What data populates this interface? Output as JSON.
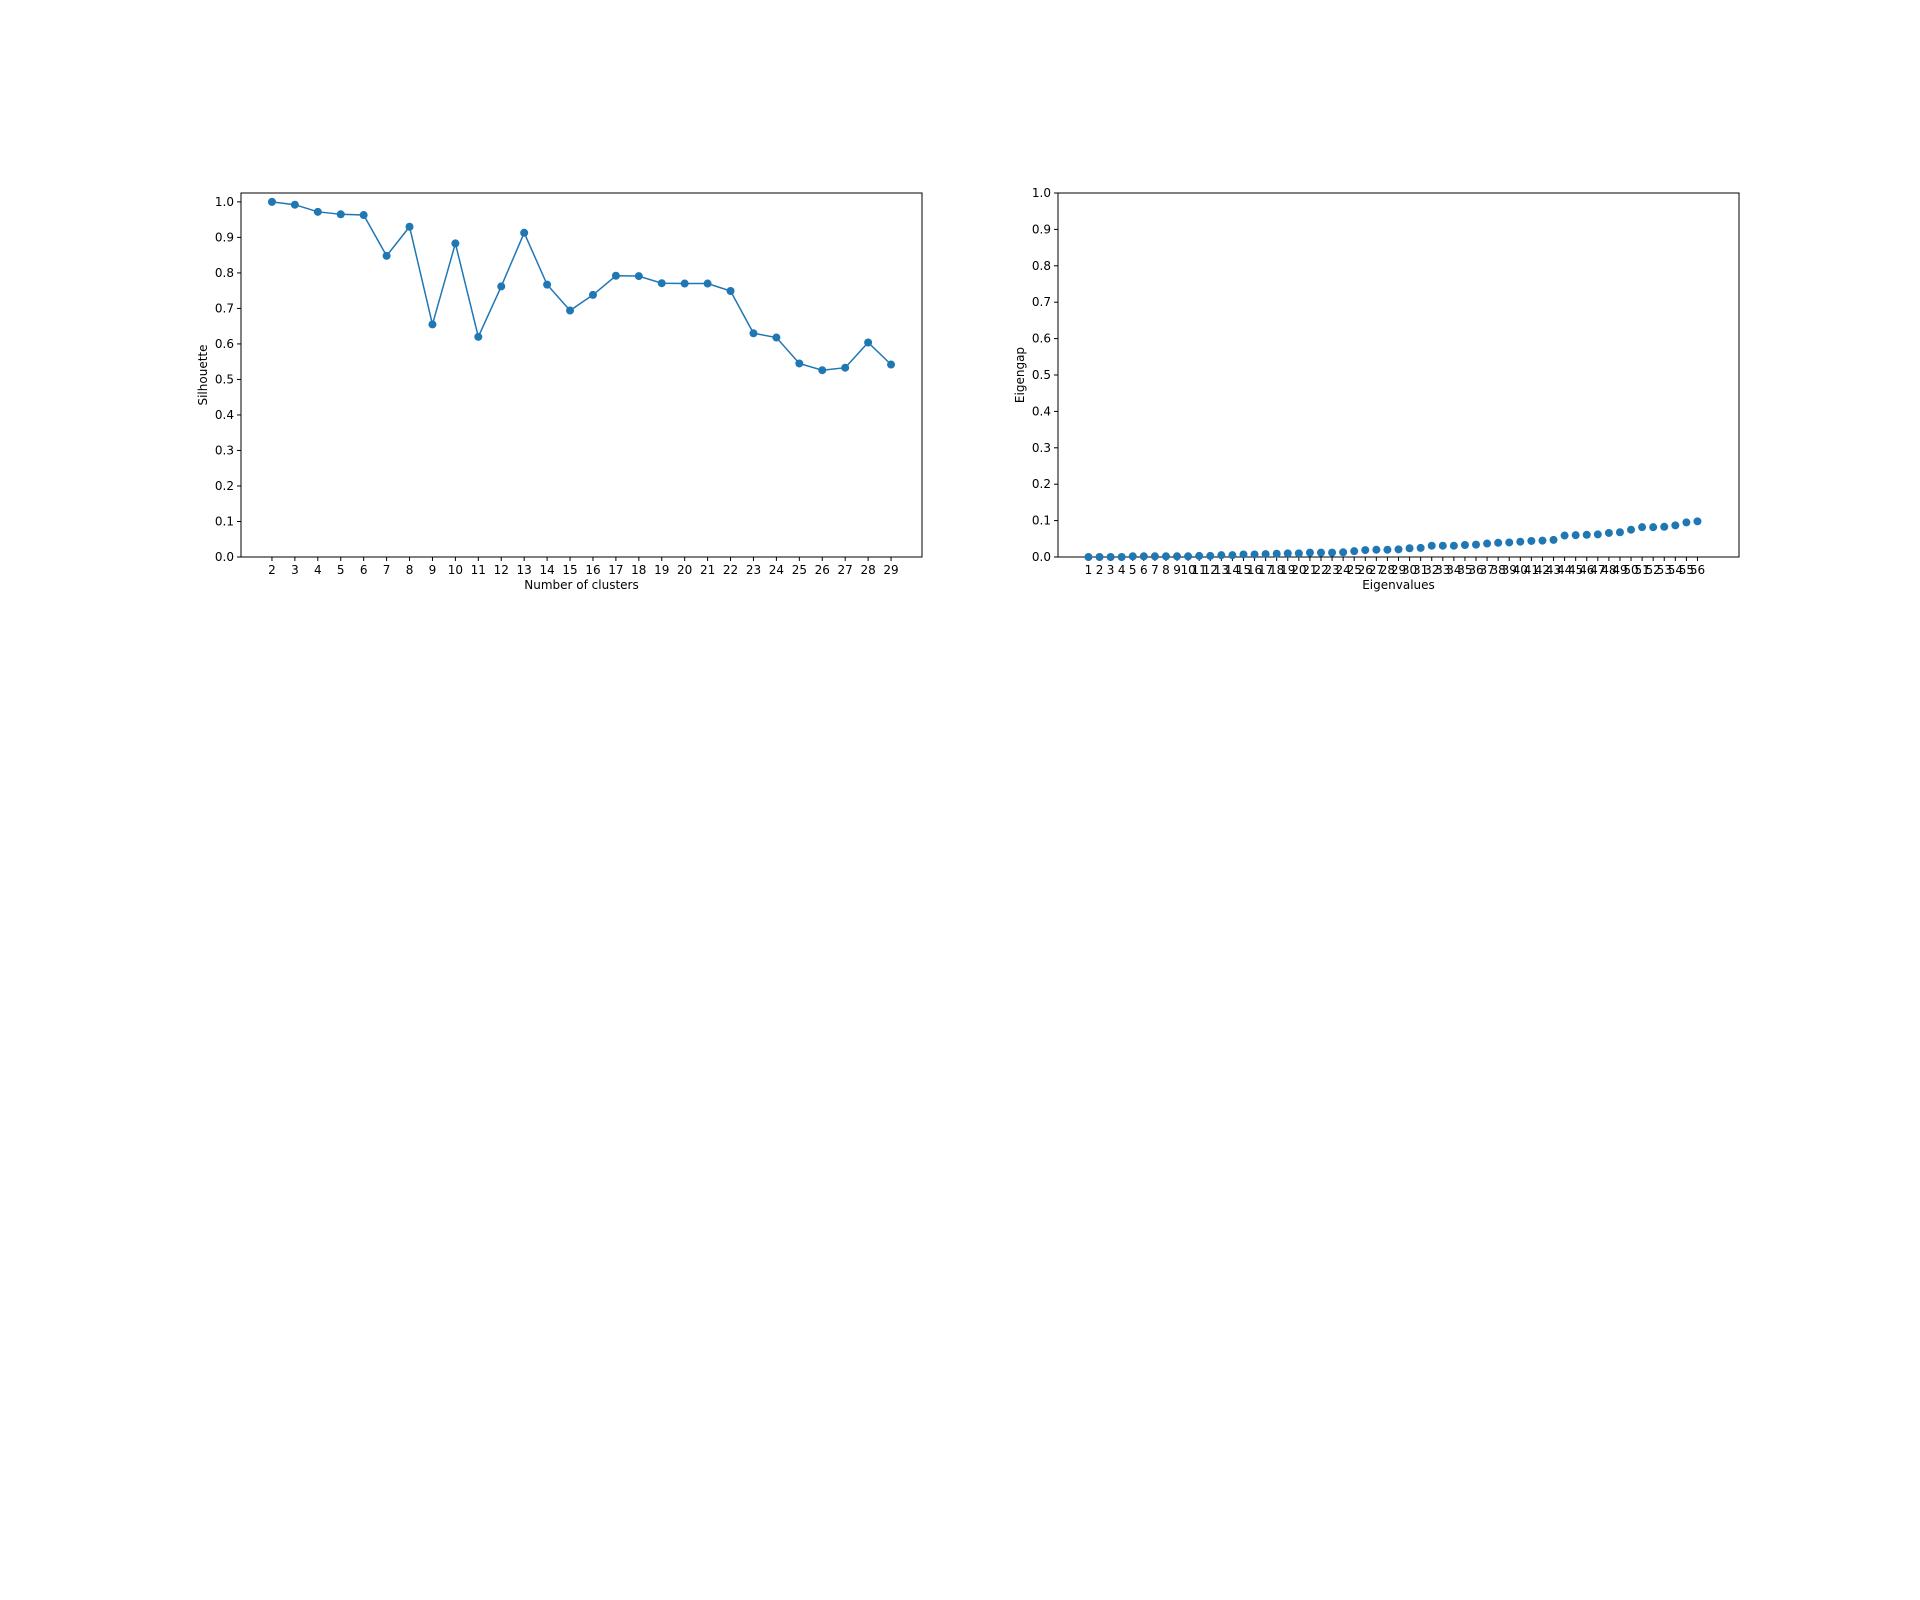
{
  "chart_data": [
    {
      "type": "line",
      "xlabel": "Number of clusters",
      "ylabel": "Silhouette",
      "x": [
        2,
        3,
        4,
        5,
        6,
        7,
        8,
        9,
        10,
        11,
        12,
        13,
        14,
        15,
        16,
        17,
        18,
        19,
        20,
        21,
        22,
        23,
        24,
        25,
        26,
        27,
        28,
        29
      ],
      "series": [
        {
          "values": [
            1.0,
            0.992,
            0.972,
            0.965,
            0.963,
            0.848,
            0.93,
            0.655,
            0.883,
            0.62,
            0.762,
            0.913,
            0.767,
            0.694,
            0.738,
            0.792,
            0.791,
            0.771,
            0.77,
            0.77,
            0.749,
            0.63,
            0.618,
            0.545,
            0.526,
            0.533,
            0.604,
            0.542
          ],
          "color": "#1f77b4"
        }
      ],
      "xticks": [
        2,
        3,
        4,
        5,
        6,
        7,
        8,
        9,
        10,
        11,
        12,
        13,
        14,
        15,
        16,
        17,
        18,
        19,
        20,
        21,
        22,
        23,
        24,
        25,
        26,
        27,
        28,
        29
      ],
      "yticks": [
        0.0,
        0.1,
        0.2,
        0.3,
        0.4,
        0.5,
        0.6,
        0.7,
        0.8,
        0.9,
        1.0
      ],
      "xlim": [
        0.65,
        30.35
      ],
      "ylim": [
        0.0,
        1.025
      ],
      "grid": false,
      "markers": true
    },
    {
      "type": "scatter",
      "xlabel": "Eigenvalues",
      "ylabel": "Eigengap",
      "x": [
        1,
        2,
        3,
        4,
        5,
        6,
        7,
        8,
        9,
        10,
        11,
        12,
        13,
        14,
        15,
        16,
        17,
        18,
        19,
        20,
        21,
        22,
        23,
        24,
        25,
        26,
        27,
        28,
        29,
        30,
        31,
        32,
        33,
        34,
        35,
        36,
        37,
        38,
        39,
        40,
        41,
        42,
        43,
        44,
        45,
        46,
        47,
        48,
        49,
        50,
        51,
        52,
        53,
        54,
        55,
        56
      ],
      "series": [
        {
          "values": [
            0.0,
            0.0,
            0.0,
            0.0,
            0.002,
            0.002,
            0.002,
            0.002,
            0.002,
            0.002,
            0.003,
            0.003,
            0.005,
            0.005,
            0.007,
            0.007,
            0.008,
            0.009,
            0.01,
            0.01,
            0.012,
            0.012,
            0.012,
            0.013,
            0.016,
            0.019,
            0.02,
            0.02,
            0.021,
            0.024,
            0.025,
            0.031,
            0.031,
            0.031,
            0.033,
            0.034,
            0.037,
            0.039,
            0.04,
            0.042,
            0.044,
            0.045,
            0.047,
            0.059,
            0.06,
            0.061,
            0.062,
            0.066,
            0.068,
            0.075,
            0.082,
            0.082,
            0.083,
            0.087,
            0.095,
            0.098
          ],
          "color": "#1f77b4"
        }
      ],
      "xticks": [
        1,
        2,
        3,
        4,
        5,
        6,
        7,
        8,
        9,
        10,
        11,
        12,
        13,
        14,
        15,
        16,
        17,
        18,
        19,
        20,
        21,
        22,
        23,
        24,
        25,
        26,
        27,
        28,
        29,
        30,
        31,
        32,
        33,
        34,
        35,
        36,
        37,
        38,
        39,
        40,
        41,
        42,
        43,
        44,
        45,
        46,
        47,
        48,
        49,
        50,
        51,
        52,
        53,
        54,
        55,
        56
      ],
      "yticks": [
        0.0,
        0.1,
        0.2,
        0.3,
        0.4,
        0.5,
        0.6,
        0.7,
        0.8,
        0.9,
        1.0
      ],
      "xlim": [
        -1.75,
        59.75
      ],
      "ylim": [
        0.0,
        1.0
      ],
      "grid": false,
      "markers": true
    }
  ]
}
